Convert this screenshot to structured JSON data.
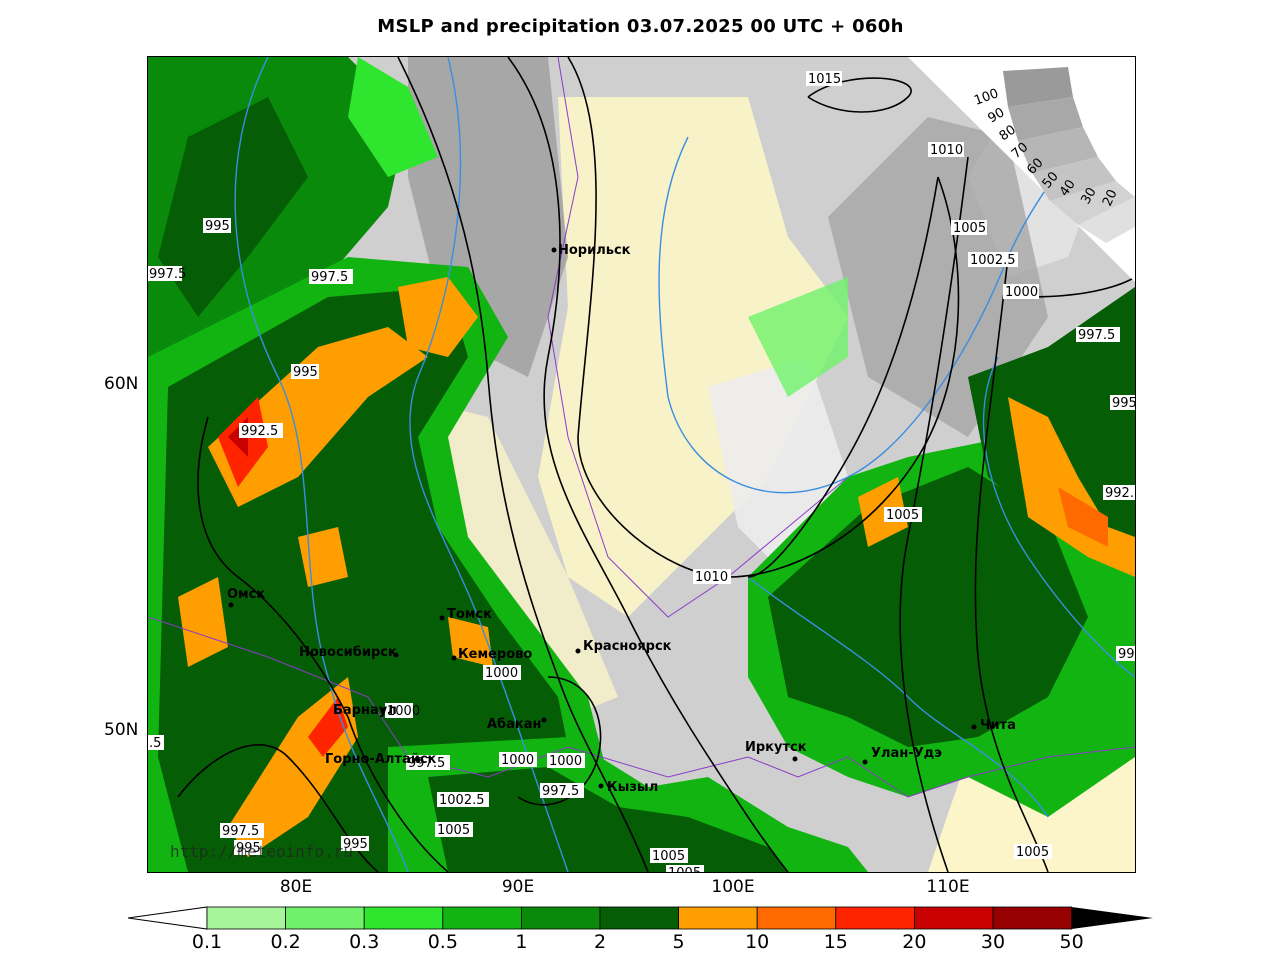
{
  "title": "MSLP and precipitation 03.07.2025 00 UTC + 060h",
  "url": "http://meteoinfo.ru",
  "axes": {
    "longitude_labels": [
      "80E",
      "90E",
      "100E",
      "110E"
    ],
    "latitude_labels": [
      "60N",
      "50N"
    ]
  },
  "cities": [
    {
      "name": "Норильск"
    },
    {
      "name": "Томск"
    },
    {
      "name": "Омск"
    },
    {
      "name": "Новосибирск"
    },
    {
      "name": "Кемерово"
    },
    {
      "name": "Красноярск"
    },
    {
      "name": "Барнаул"
    },
    {
      "name": "Горно-Алтайск"
    },
    {
      "name": "Абакан"
    },
    {
      "name": "Кызыл"
    },
    {
      "name": "Иркутск"
    },
    {
      "name": "Улан-Удэ"
    },
    {
      "name": "Чита"
    }
  ],
  "isobar_labels": [
    "1015",
    "1010",
    "1005",
    "1002.5",
    "1000",
    "997.5",
    "995",
    "992.5",
    "997.5",
    "995",
    "997.5",
    "995",
    "992.5",
    "1005",
    "1010",
    "1000",
    "1000",
    "1000",
    "1000",
    "997.5",
    "995",
    "1002.5",
    "1005",
    "997.5",
    "995",
    "1005",
    "1005",
    "1005",
    ".5",
    "99",
    "99"
  ],
  "cloud_scale_labels": [
    "100",
    "90",
    "80",
    "70",
    "60",
    "50",
    "40",
    "30",
    "20"
  ],
  "precip_legend": {
    "units_ticks": [
      "0.1",
      "0.2",
      "0.3",
      "0.5",
      "1",
      "2",
      "5",
      "10",
      "15",
      "20",
      "30",
      "50"
    ],
    "colors": [
      "#ffffff",
      "#a6f59a",
      "#6ff26a",
      "#2ee62e",
      "#12b412",
      "#0a8a0a",
      "#055e05",
      "#ff9e00",
      "#ff6a00",
      "#ff2400",
      "#c80000",
      "#960000",
      "#000000"
    ]
  },
  "colors": {
    "cloud_gray": "#bcbcbc",
    "land_clear": "#fff8c8",
    "isobar": "#000000",
    "isotherm": "#3a8ee0",
    "border": "#8a3cc8"
  }
}
